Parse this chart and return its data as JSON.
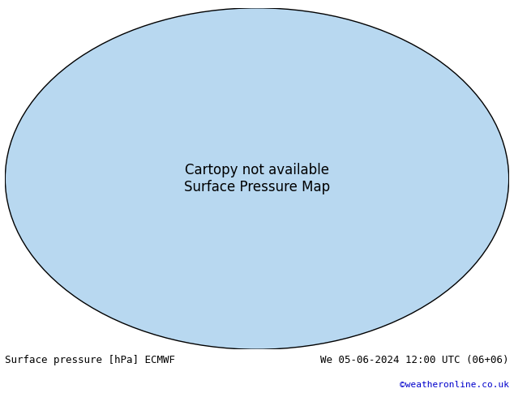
{
  "title_left": "Surface pressure [hPa] ECMWF",
  "title_right": "We 05-06-2024 12:00 UTC (06+06)",
  "copyright": "©weatheronline.co.uk",
  "copyright_color": "#0000cc",
  "background_color": "#ffffff",
  "map_ocean_color": "#aaddff",
  "map_land_color": "#dddddd",
  "map_highlight_color": "#ccffcc",
  "contour_interval": 4,
  "pressure_min": 960,
  "pressure_max": 1040,
  "isobar_1013_color": "#000000",
  "isobar_above_color": "#cc0000",
  "isobar_below_color": "#0000cc",
  "label_fontsize": 7,
  "text_fontsize": 9,
  "figsize": [
    6.34,
    4.9
  ],
  "dpi": 100
}
